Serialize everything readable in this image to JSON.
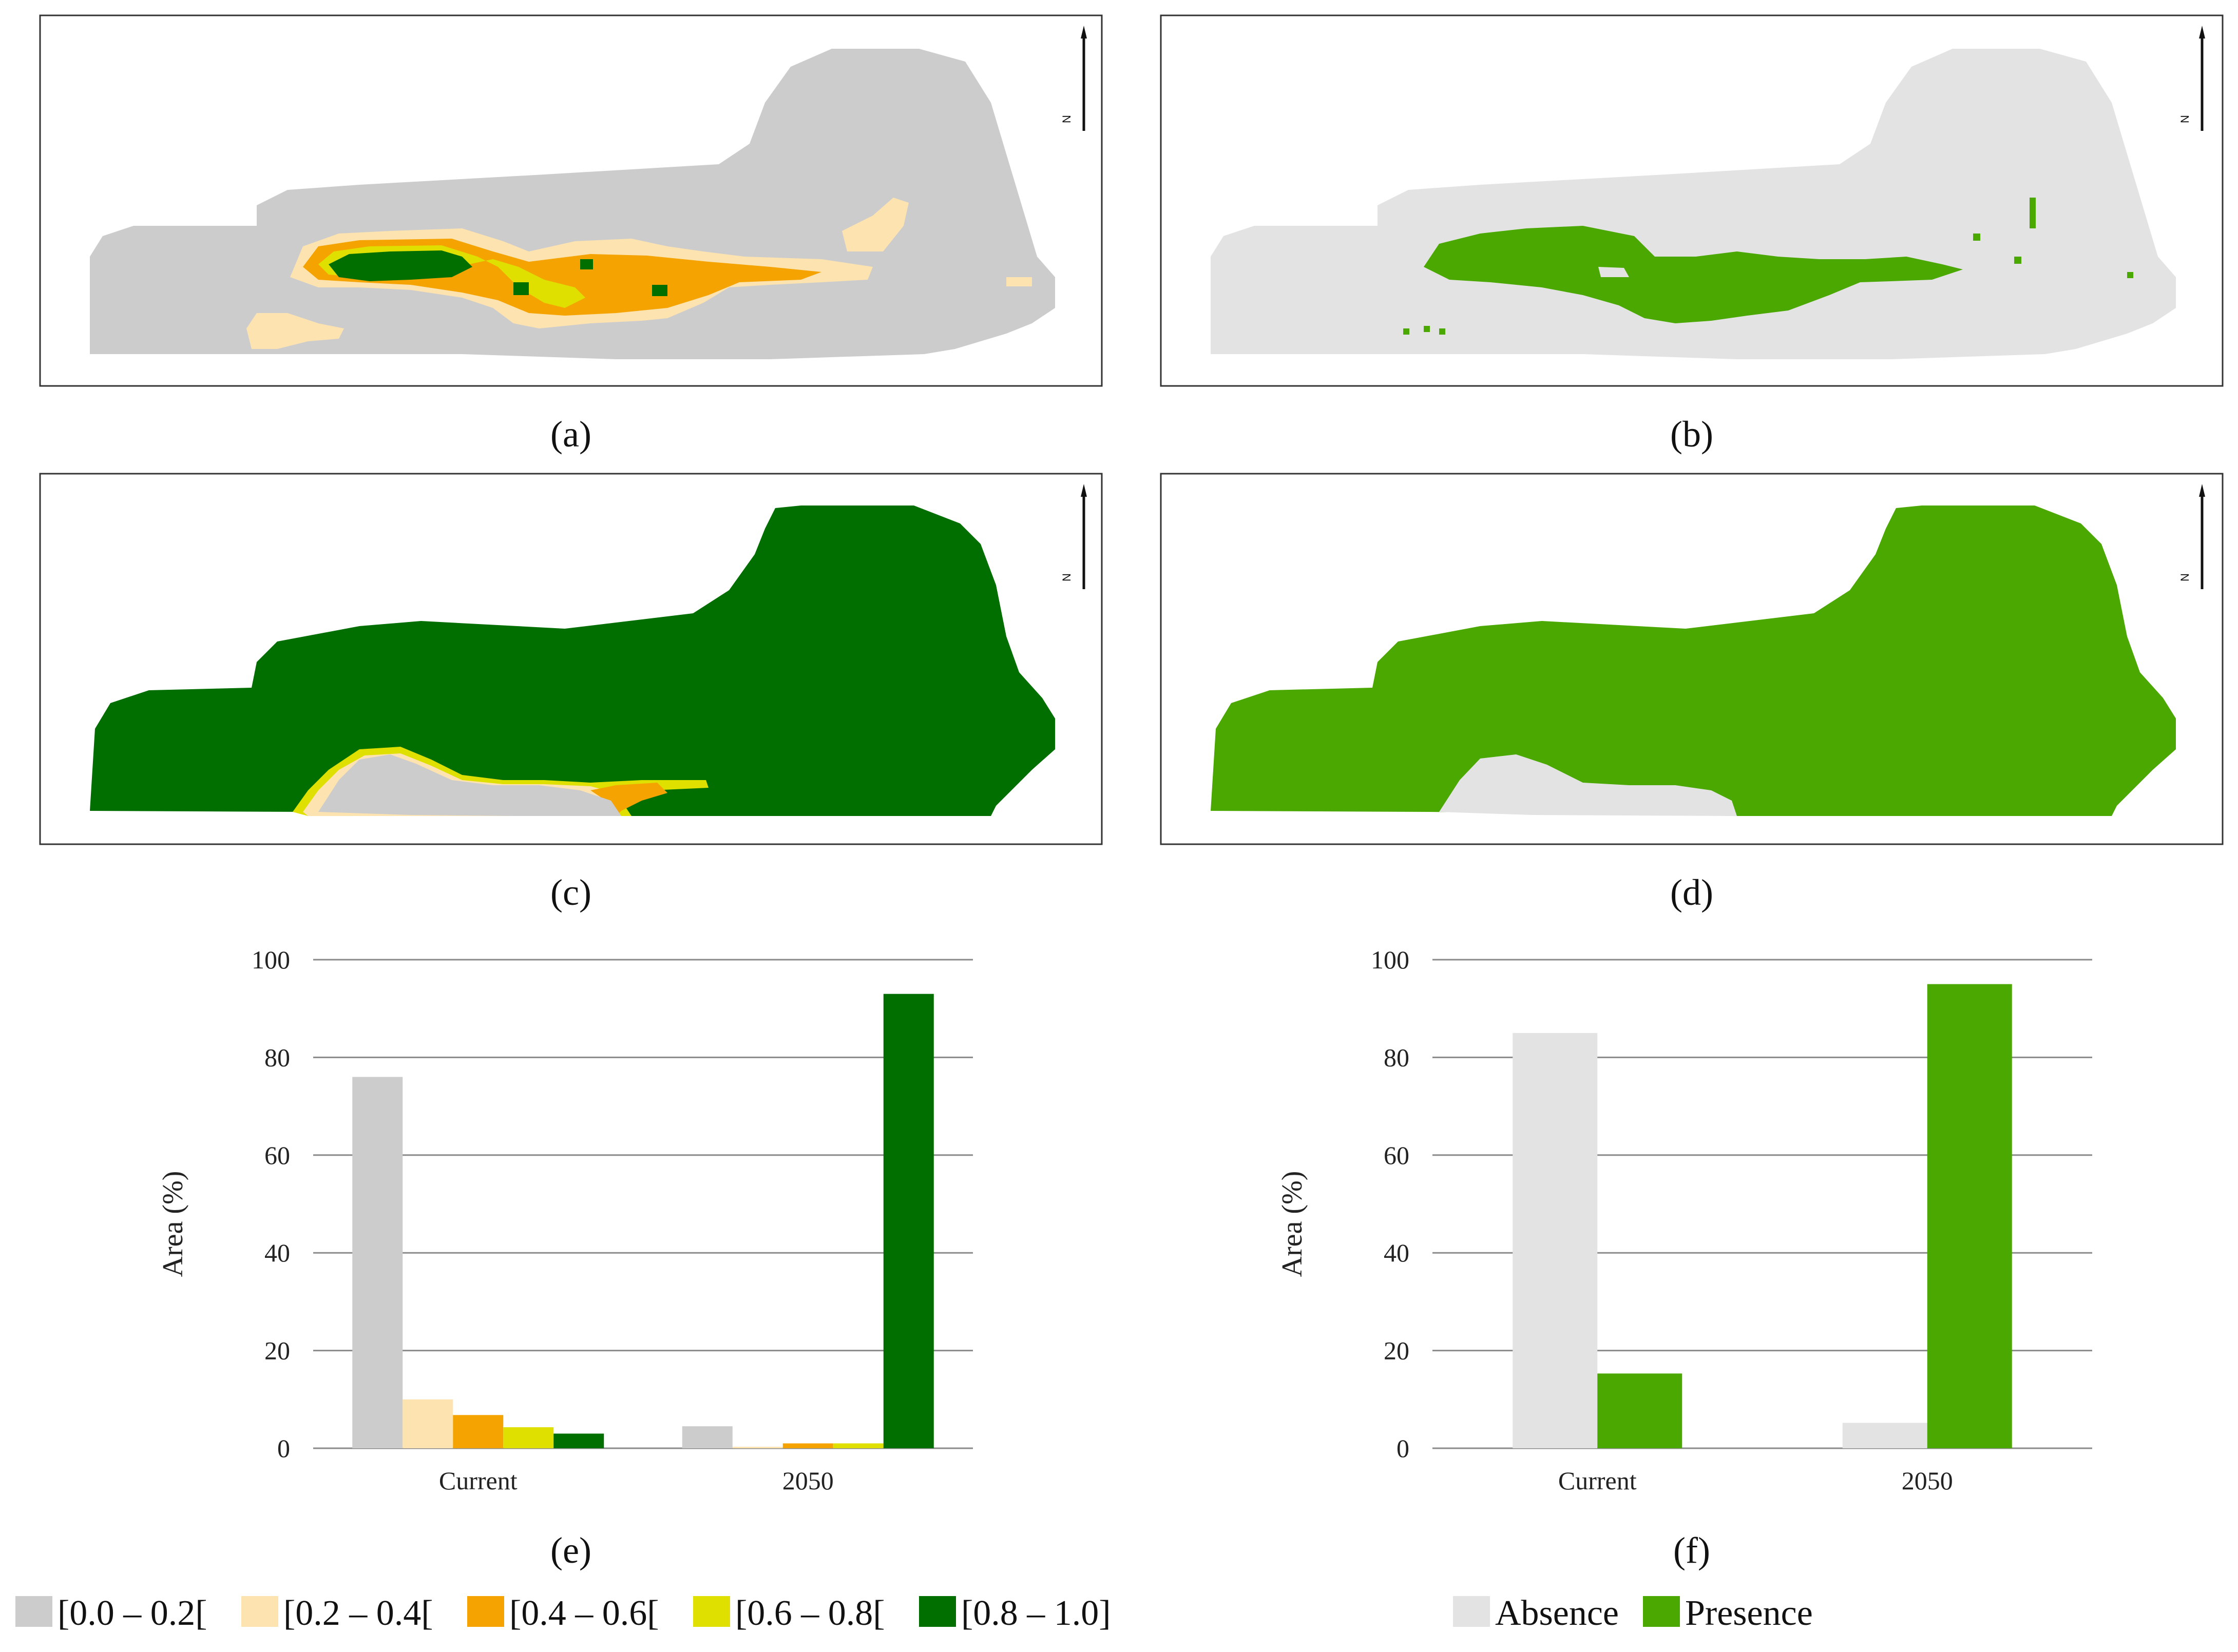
{
  "panels": {
    "a": "(a)",
    "b": "(b)",
    "c": "(c)",
    "d": "(d)",
    "e": "(e)",
    "f": "(f)"
  },
  "north_label": "N",
  "map_colors": {
    "c0": "#cccccc",
    "c1": "#fde3b0",
    "c2": "#f5a300",
    "c3": "#dfe000",
    "c4": "#006f00",
    "absence": "#e3e3e3",
    "presence": "#4aa800"
  },
  "legend_left": [
    {
      "label": "[0.0 – 0.2[",
      "color": "#cccccc"
    },
    {
      "label": "[0.2 – 0.4[",
      "color": "#fde3b0"
    },
    {
      "label": "[0.4 – 0.6[",
      "color": "#f5a300"
    },
    {
      "label": "[0.6 – 0.8[",
      "color": "#dfe000"
    },
    {
      "label": "[0.8 – 1.0]",
      "color": "#006f00"
    }
  ],
  "legend_right": [
    {
      "label": "Absence",
      "color": "#e3e3e3"
    },
    {
      "label": "Presence",
      "color": "#4aa800"
    }
  ],
  "chart_data": [
    {
      "type": "bar",
      "panel": "e",
      "ylabel": "Area (%)",
      "xlabel": "",
      "ylim": [
        0,
        100
      ],
      "yticks": [
        0,
        20,
        40,
        60,
        80,
        100
      ],
      "grid": true,
      "categories": [
        "Current",
        "2050"
      ],
      "series": [
        {
          "name": "[0.0 – 0.2[",
          "color": "#cccccc",
          "values": [
            76,
            4.5
          ]
        },
        {
          "name": "[0.2 – 0.4[",
          "color": "#fde3b0",
          "values": [
            10,
            0.3
          ]
        },
        {
          "name": "[0.4 – 0.6[",
          "color": "#f5a300",
          "values": [
            6.8,
            1
          ]
        },
        {
          "name": "[0.6 – 0.8[",
          "color": "#dfe000",
          "values": [
            4.3,
            1
          ]
        },
        {
          "name": "[0.8 – 1.0]",
          "color": "#006f00",
          "values": [
            3,
            93
          ]
        }
      ]
    },
    {
      "type": "bar",
      "panel": "f",
      "ylabel": "Area (%)",
      "xlabel": "",
      "ylim": [
        0,
        100
      ],
      "yticks": [
        0,
        20,
        40,
        60,
        80,
        100
      ],
      "grid": true,
      "categories": [
        "Current",
        "2050"
      ],
      "series": [
        {
          "name": "Absence",
          "color": "#e3e3e3",
          "values": [
            85,
            5.2
          ]
        },
        {
          "name": "Presence",
          "color": "#4aa800",
          "values": [
            15.3,
            95
          ]
        }
      ]
    }
  ]
}
